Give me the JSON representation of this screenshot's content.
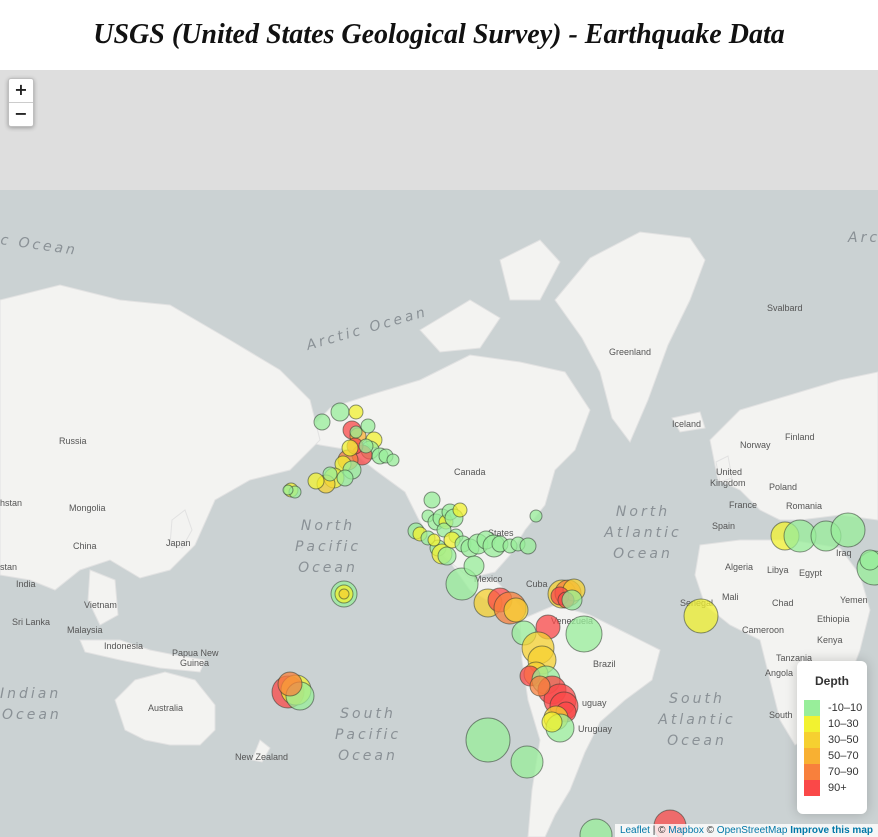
{
  "title": "USGS (United States Geological Survey) - Earthquake Data",
  "zoom": {
    "in_label": "+",
    "out_label": "−"
  },
  "legend": {
    "title": "Depth",
    "items": [
      {
        "label": "-10–10",
        "color": "#98ee9a"
      },
      {
        "label": "10–30",
        "color": "#f2f230"
      },
      {
        "label": "30–50",
        "color": "#f6d030"
      },
      {
        "label": "50–70",
        "color": "#f8b032"
      },
      {
        "label": "70–90",
        "color": "#f8803c"
      },
      {
        "label": "90+",
        "color": "#fa4848"
      }
    ]
  },
  "attribution": {
    "leaflet": "Leaflet",
    "sep": " | © ",
    "mapbox": "Mapbox",
    "osm_prefix": " © ",
    "osm": "OpenStreetMap",
    "improve": "Improve this map"
  },
  "oceans": {
    "arctic": "Arctic Ocean",
    "north_pacific": [
      "North",
      "Pacific",
      "Ocean"
    ],
    "south_pacific": [
      "South",
      "Pacific",
      "Ocean"
    ],
    "north_atlantic": [
      "North",
      "Atlantic",
      "Ocean"
    ],
    "south_atlantic": [
      "South",
      "Atlantic",
      "Ocean"
    ],
    "indian": [
      "Indian",
      "Ocean"
    ],
    "arctic_left": "c Ocean",
    "arctic_right": "Arc"
  },
  "places": {
    "russia": "Russia",
    "mongolia": "Mongolia",
    "china": "China",
    "japan": "Japan",
    "india": "India",
    "vietnam": "Vietnam",
    "sri_lanka": "Sri Lanka",
    "malaysia": "Malaysia",
    "indonesia": "Indonesia",
    "png1": "Papua New",
    "png2": "Guinea",
    "australia": "Australia",
    "new_zealand": "New Zealand",
    "kazakhstan_frag": "hstan",
    "canada": "Canada",
    "mexico": "Mexico",
    "cuba": "Cuba",
    "venezuela": "Venezuela",
    "brazil": "Brazil",
    "uruguay": "Uruguay",
    "uruguay_frag": "uguay",
    "greenland": "Greenland",
    "iceland": "Iceland",
    "svalbard": "Svalbard",
    "norway": "Norway",
    "finland": "Finland",
    "uk1": "United",
    "uk2": "Kingdom",
    "poland": "Poland",
    "france": "France",
    "spain": "Spain",
    "romania": "Romania",
    "algeria": "Algeria",
    "libya": "Libya",
    "egypt": "Egypt",
    "iraq": "Iraq",
    "mali": "Mali",
    "chad": "Chad",
    "senegal": "Senegal",
    "cameroon": "Cameroon",
    "ethiopia": "Ethiopia",
    "yemen": "Yemen",
    "kenya": "Kenya",
    "tanzania": "Tanzania",
    "angola": "Angola",
    "south_frag": "South",
    "stan_frag": "stan",
    "states_frag": "States"
  }
}
